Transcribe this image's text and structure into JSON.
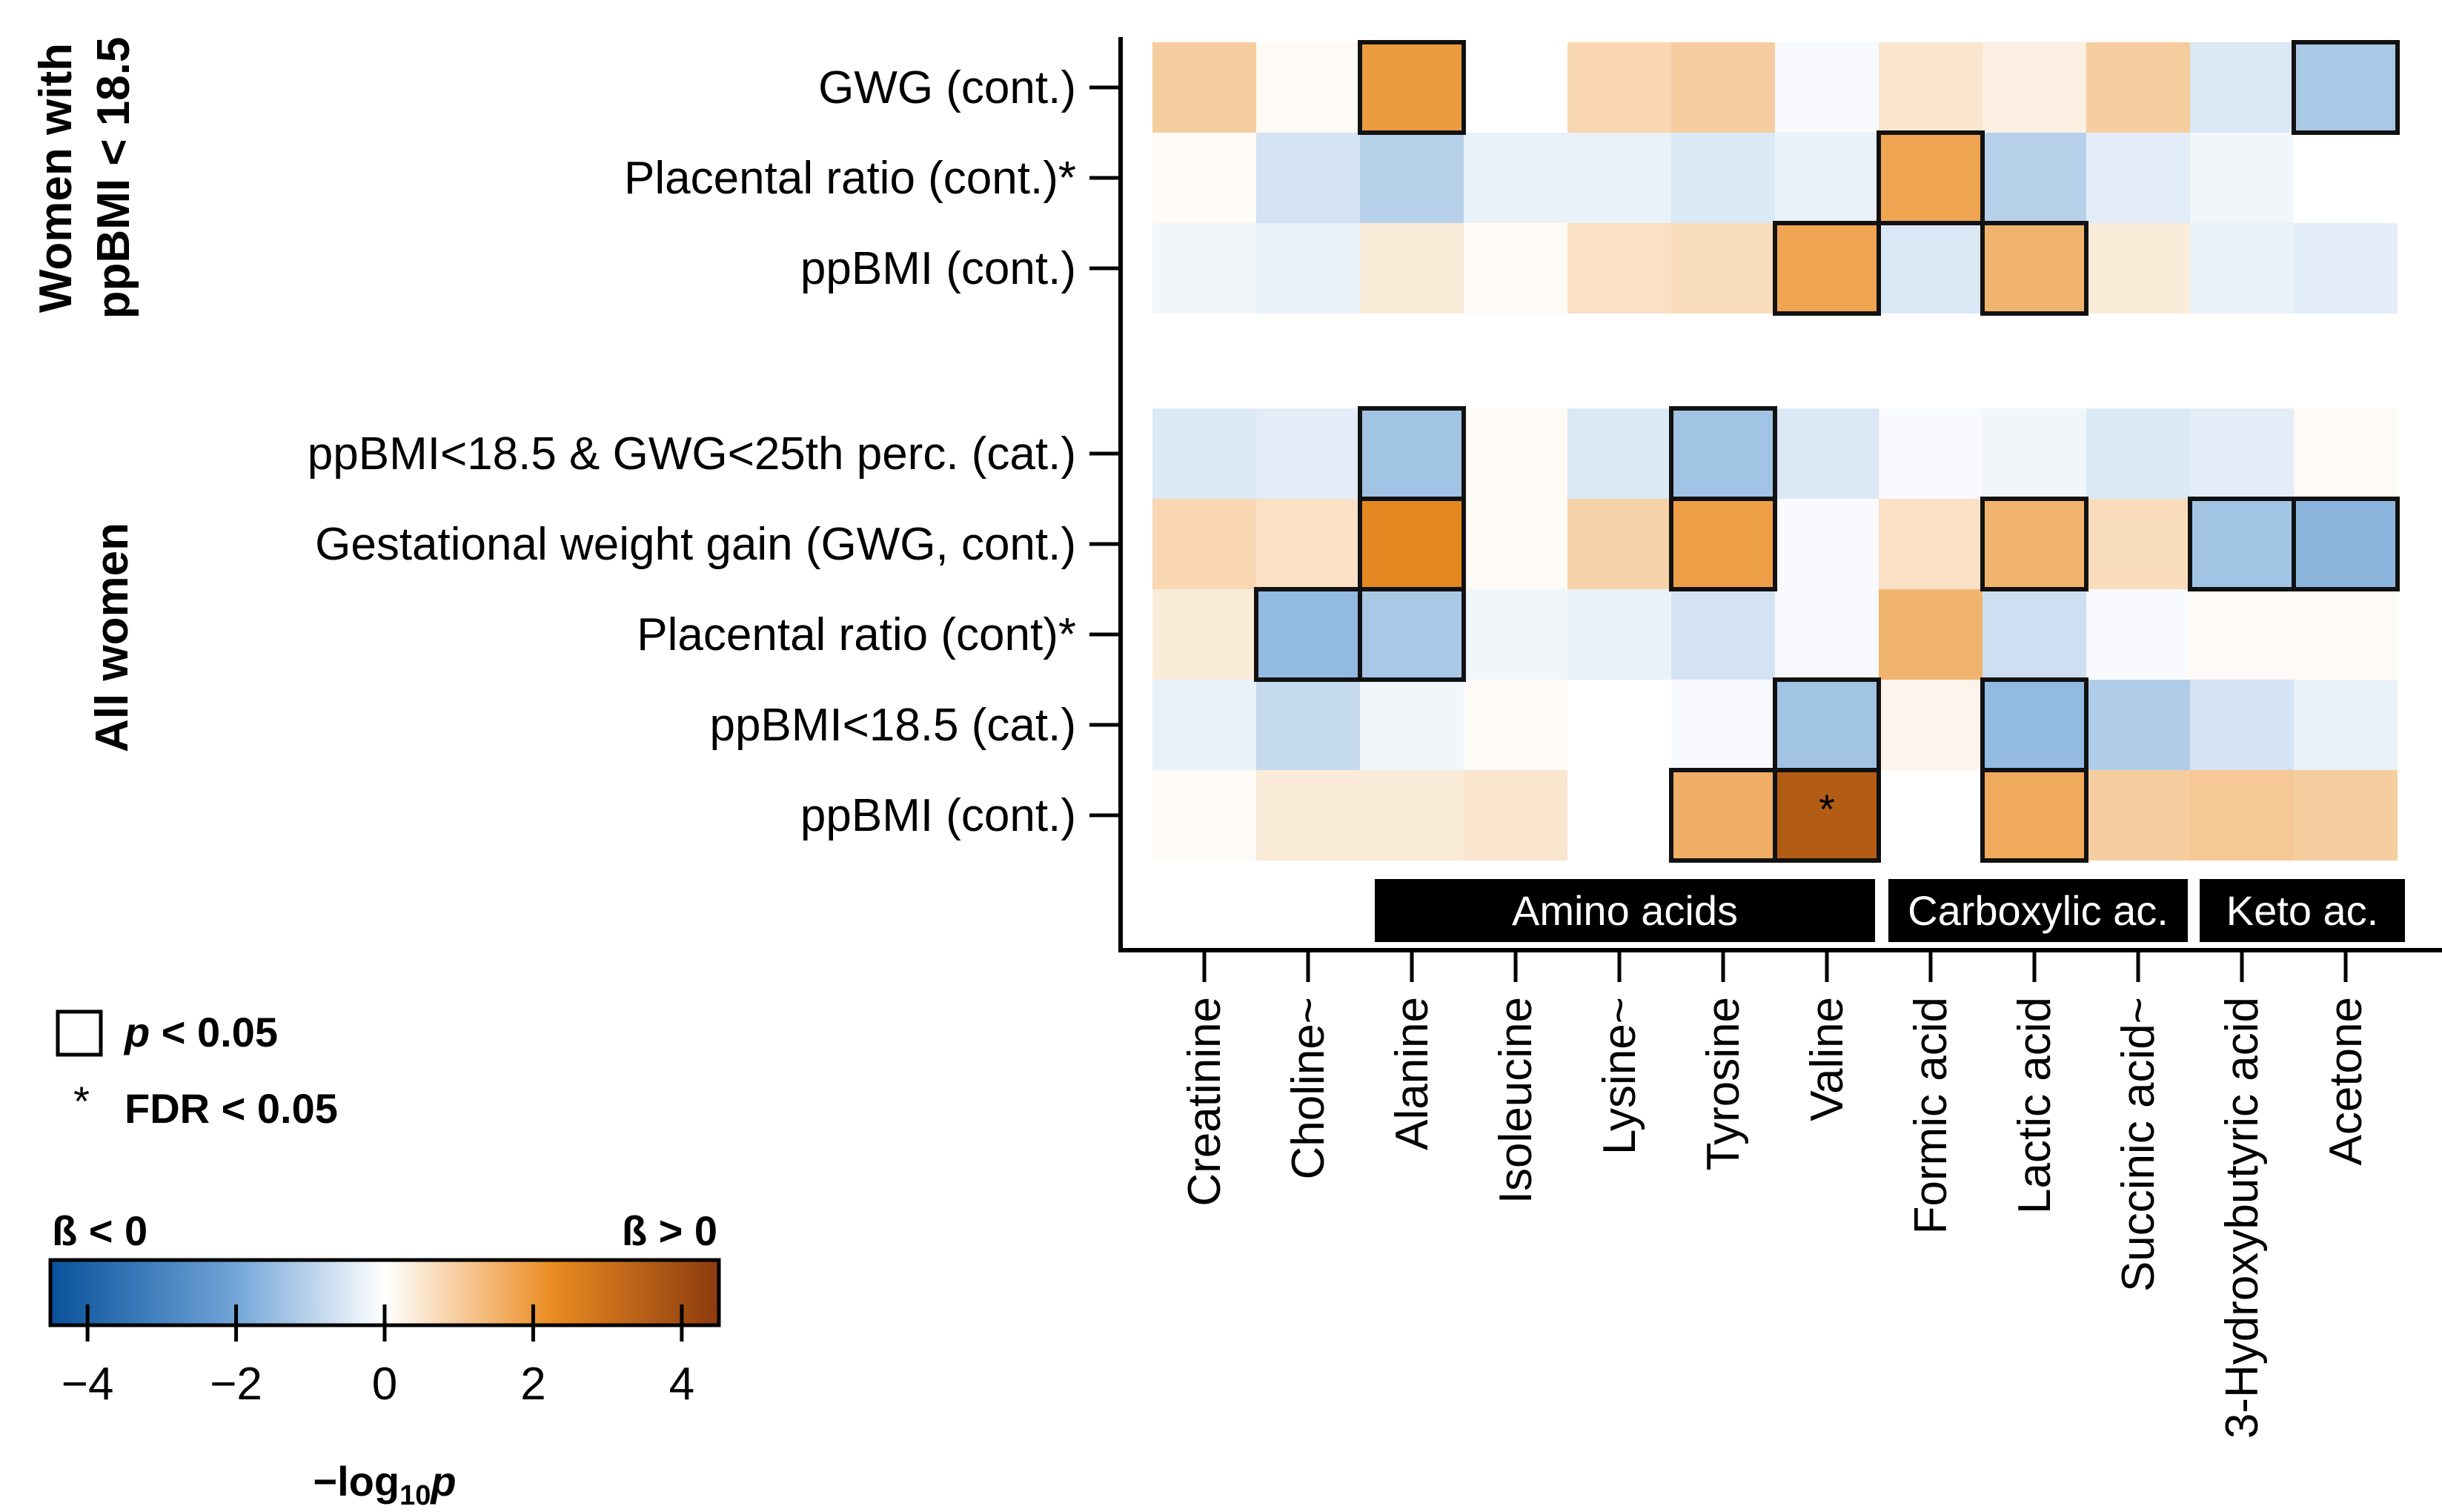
{
  "chart_data": {
    "type": "heatmap",
    "columns": [
      "Creatinine",
      "Choline~",
      "Alanine",
      "Isoleucine",
      "Lysine~",
      "Tyrosine",
      "Valine",
      "Formic acid",
      "Lactic acid",
      "Succinic acid~",
      "3-Hydroxybutyric acid",
      "Acetone"
    ],
    "column_groups": [
      {
        "label": "Amino acids",
        "from": 2,
        "to": 6
      },
      {
        "label": "Carboxylic ac.",
        "from": 7,
        "to": 9
      },
      {
        "label": "Keto ac.",
        "from": 10,
        "to": 11
      }
    ],
    "row_groups": [
      {
        "label_lines": [
          "Women with",
          "ppBMI < 18.5"
        ],
        "rows": [
          {
            "label": "GWG (cont.)",
            "values": [
              1.0,
              0.1,
              2.0,
              0.0,
              0.8,
              1.0,
              -0.1,
              0.5,
              0.3,
              1.0,
              -0.5,
              -1.2
            ],
            "significant": [
              false,
              false,
              true,
              false,
              false,
              false,
              false,
              false,
              false,
              false,
              false,
              true
            ],
            "fdr": [
              false,
              false,
              false,
              false,
              false,
              false,
              false,
              false,
              false,
              false,
              false,
              false
            ]
          },
          {
            "label": "Placental ratio (cont.)*",
            "values": [
              0.1,
              -0.6,
              -1.0,
              -0.3,
              -0.3,
              -0.5,
              -0.3,
              1.8,
              -1.0,
              -0.4,
              -0.2,
              0.0
            ],
            "significant": [
              false,
              false,
              false,
              false,
              false,
              false,
              false,
              true,
              false,
              false,
              false,
              false
            ],
            "fdr": [
              false,
              false,
              false,
              false,
              false,
              false,
              false,
              false,
              false,
              false,
              false,
              false
            ]
          },
          {
            "label": "ppBMI (cont.)",
            "values": [
              -0.2,
              -0.3,
              0.4,
              0.1,
              0.6,
              0.7,
              1.8,
              -0.5,
              1.5,
              0.4,
              -0.3,
              -0.4
            ],
            "significant": [
              false,
              false,
              false,
              false,
              false,
              false,
              true,
              false,
              true,
              false,
              false,
              false
            ],
            "fdr": [
              false,
              false,
              false,
              false,
              false,
              false,
              false,
              false,
              false,
              false,
              false,
              false
            ]
          }
        ]
      },
      {
        "label_lines": [
          "All women"
        ],
        "rows": [
          {
            "label": "ppBMI<18.5 & GWG<25th perc. (cat.)",
            "values": [
              -0.5,
              -0.4,
              -1.3,
              0.1,
              -0.5,
              -1.3,
              -0.5,
              -0.1,
              -0.2,
              -0.5,
              -0.4,
              0.1
            ],
            "significant": [
              false,
              false,
              true,
              false,
              false,
              true,
              false,
              false,
              false,
              false,
              false,
              false
            ],
            "fdr": [
              false,
              false,
              false,
              false,
              false,
              false,
              false,
              false,
              false,
              false,
              false,
              false
            ]
          },
          {
            "label": "Gestational weight gain (GWG, cont.)",
            "values": [
              0.8,
              0.6,
              2.4,
              0.1,
              0.9,
              1.9,
              -0.1,
              0.6,
              1.5,
              0.7,
              -1.3,
              -1.6
            ],
            "significant": [
              false,
              false,
              true,
              false,
              false,
              true,
              false,
              false,
              true,
              false,
              true,
              true
            ],
            "fdr": [
              false,
              false,
              false,
              false,
              false,
              false,
              false,
              false,
              false,
              false,
              false,
              false
            ]
          },
          {
            "label": "Placental ratio (cont)*",
            "values": [
              0.4,
              -1.5,
              -1.2,
              -0.2,
              -0.3,
              -0.6,
              -0.1,
              1.5,
              -0.7,
              -0.1,
              0.1,
              0.1
            ],
            "significant": [
              false,
              true,
              true,
              false,
              false,
              false,
              false,
              false,
              false,
              false,
              false,
              false
            ],
            "fdr": [
              false,
              false,
              false,
              false,
              false,
              false,
              false,
              false,
              false,
              false,
              false,
              false
            ]
          },
          {
            "label": "ppBMI<18.5 (cat.)",
            "values": [
              -0.3,
              -0.8,
              -0.2,
              0.1,
              0.0,
              -0.1,
              -1.3,
              0.2,
              -1.5,
              -1.1,
              -0.6,
              -0.3
            ],
            "significant": [
              false,
              false,
              false,
              false,
              false,
              false,
              true,
              false,
              true,
              false,
              false,
              false
            ],
            "fdr": [
              false,
              false,
              false,
              false,
              false,
              false,
              false,
              false,
              false,
              false,
              false,
              false
            ]
          },
          {
            "label": "ppBMI (cont.)",
            "values": [
              0.1,
              0.4,
              0.4,
              0.5,
              0.0,
              1.6,
              3.6,
              0.0,
              1.7,
              1.0,
              1.1,
              1.0
            ],
            "significant": [
              false,
              false,
              false,
              false,
              false,
              true,
              true,
              false,
              true,
              false,
              false,
              false
            ],
            "fdr": [
              false,
              false,
              false,
              false,
              false,
              false,
              true,
              false,
              false,
              false,
              false,
              false
            ]
          }
        ]
      }
    ],
    "colorbar": {
      "range": [
        -4.5,
        4.5
      ],
      "ticks": [
        "−4",
        "−2",
        "0",
        "2",
        "4"
      ],
      "tick_values": [
        -4,
        -2,
        0,
        2,
        4
      ],
      "label_prefix": "−log",
      "label_sub": "10",
      "label_suffix": "p",
      "left_label": "ß < 0",
      "right_label": "ß > 0"
    },
    "legend": {
      "box_symbol_label": "p",
      "box_label": " < 0.05",
      "star_symbol": "*",
      "star_label": "FDR < 0.05"
    },
    "colors": {
      "neg_strong": "#08519c",
      "neg_mid": "#6fa3d6",
      "neutral": "#ffffff",
      "pos_mid": "#ea8c22",
      "pos_strong": "#8c3a0e"
    }
  }
}
